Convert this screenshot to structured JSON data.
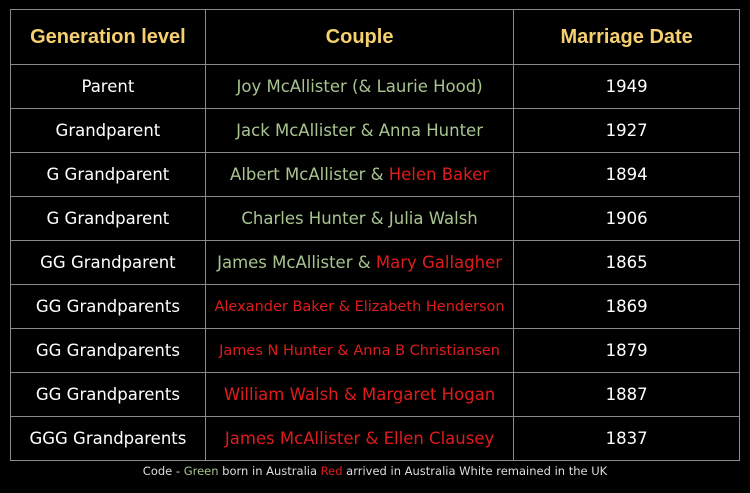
{
  "colors": {
    "header": "#f6d06f",
    "green": "#a8c490",
    "red": "#e01b1b",
    "white": "#ffffff",
    "background": "#000000"
  },
  "headers": [
    "Generation level",
    "Couple",
    "Marriage Date"
  ],
  "rows": [
    {
      "level": "Parent",
      "couple": [
        {
          "text": "Joy McAllister (& Laurie Hood)",
          "color": "green"
        }
      ],
      "date": "1949"
    },
    {
      "level": "Grandparent",
      "couple": [
        {
          "text": "Jack McAllister & Anna Hunter",
          "color": "green"
        }
      ],
      "date": "1927"
    },
    {
      "level": "G Grandparent",
      "couple": [
        {
          "text": "Albert McAllister & ",
          "color": "green"
        },
        {
          "text": "Helen Baker",
          "color": "red"
        }
      ],
      "date": "1894"
    },
    {
      "level": "G Grandparent",
      "couple": [
        {
          "text": "Charles Hunter & Julia Walsh",
          "color": "green"
        }
      ],
      "date": "1906"
    },
    {
      "level": "GG Grandparent",
      "couple": [
        {
          "text": "James McAllister & ",
          "color": "green"
        },
        {
          "text": "Mary Gallagher",
          "color": "red"
        }
      ],
      "date": "1865"
    },
    {
      "level": "GG Grandparents",
      "couple": [
        {
          "text": "Alexander Baker & Elizabeth Henderson",
          "color": "red"
        }
      ],
      "date": "1869"
    },
    {
      "level": "GG Grandparents",
      "couple": [
        {
          "text": "James N Hunter & Anna B Christiansen",
          "color": "red"
        }
      ],
      "date": "1879"
    },
    {
      "level": "GG Grandparents",
      "couple": [
        {
          "text": "William Walsh & Margaret Hogan",
          "color": "red"
        }
      ],
      "date": "1887"
    },
    {
      "level": "GGG Grandparents",
      "couple": [
        {
          "text": "James McAllister & Ellen Clausey",
          "color": "red"
        }
      ],
      "date": "1837"
    }
  ],
  "footer": {
    "prefix": "Code - ",
    "green": "Green",
    "mid": " born in Australia ",
    "red": "Red",
    "suffix": " arrived in Australia White remained in the UK"
  }
}
